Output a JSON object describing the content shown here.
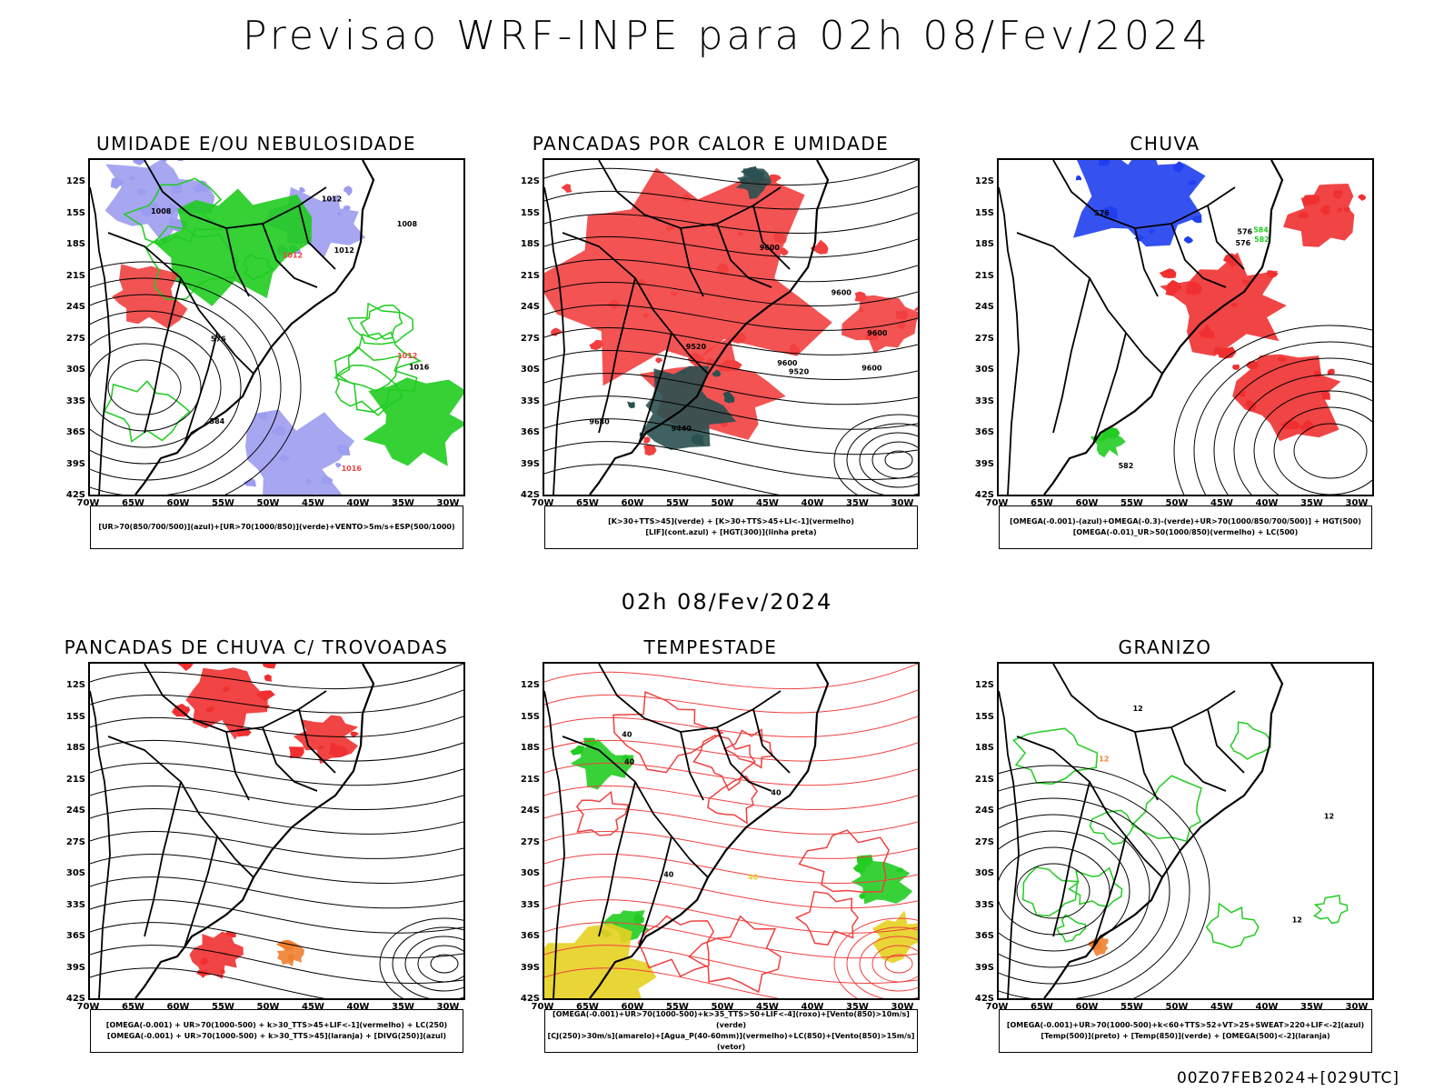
{
  "header": {
    "title": "Previsao WRF-INPE  para 02h 08/Fev/2024",
    "subtitle": "02h 08/Fev/2024",
    "footer": "00Z07FEB2024+[029UTC]"
  },
  "axes": {
    "lat_labels": [
      "12S",
      "15S",
      "18S",
      "21S",
      "24S",
      "27S",
      "30S",
      "33S",
      "36S",
      "39S",
      "42S"
    ],
    "lon_labels": [
      "70W",
      "65W",
      "60W",
      "55W",
      "50W",
      "45W",
      "40W",
      "35W",
      "30W"
    ]
  },
  "panels": [
    {
      "title": "UMIDADE E/OU NEBULOSIDADE",
      "legend": [
        "[UR>70(850/700/500)](azul)+[UR>70(1000/850)](verde)+VENTO>5m/s+ESP(500/1000)"
      ],
      "contour_labels": [
        "1012",
        "1012",
        "1012",
        "1016",
        "1008",
        "1016",
        "576",
        "584",
        "1012",
        "1008"
      ],
      "colors": {
        "primary": "#9c9cf0",
        "secondary": "#1fcc1f",
        "tertiary": "#f04040"
      }
    },
    {
      "title": "PANCADAS POR CALOR E UMIDADE",
      "legend": [
        "[K>30+TTS>45](verde) + [K>30+TTS>45+LI<-1](vermelho)",
        "[LIF](cont.azul) + [HGT(300)](linha preta)"
      ],
      "contour_labels": [
        "9680",
        "9600",
        "9600",
        "9600",
        "9600",
        "9440",
        "9520",
        "9520",
        "9600"
      ],
      "colors": {
        "primary": "#f24040",
        "secondary": "#2a5050",
        "tertiary": "#3050f0"
      }
    },
    {
      "title": "CHUVA",
      "legend": [
        "[OMEGA(-0.001)-(azul)+OMEGA(-0.3)-(verde)+UR>70(1000/850/700/500)] + HGT(500)",
        "[OMEGA(-0.01)_UR>50(1000/850)(vermelho) + LC(500)"
      ],
      "contour_labels": [
        "582",
        "576",
        "582",
        "576",
        "576",
        "584"
      ],
      "colors": {
        "primary": "#f03030",
        "secondary": "#1f3ff0",
        "tertiary": "#22cc22"
      }
    },
    {
      "title": "PANCADAS DE CHUVA C/ TROVOADAS",
      "legend": [
        "[OMEGA(-0.001) + UR>70(1000-500) + k>30_TTS>45+LIF<-1](vermelho) + LC(250)",
        "[OMEGA(-0.001) + UR>70(1000-500) + k>30_TTS>45](laranja) + [DIVG(250)](azul)"
      ],
      "contour_labels": [],
      "colors": {
        "primary": "#f03030",
        "secondary": "#2050f0",
        "tertiary": "#f08030"
      }
    },
    {
      "title": "TEMPESTADE",
      "legend": [
        "[OMEGA(-0.001)+UR>70(1000-500)+k>35_TTS>50+LIF<-4](roxo)+[Vento(850)>10m/s](verde)",
        "[CJ(250)>30m/s](amarelo)+[Agua_P(40-60mm)](vermelho)+LC(850)+[Vento(850)>15m/s](vetor)"
      ],
      "contour_labels": [
        "40",
        "40",
        "40",
        "40",
        "40"
      ],
      "colors": {
        "primary": "#f04040",
        "secondary": "#22cc22",
        "tertiary": "#e6d020"
      }
    },
    {
      "title": "GRANIZO",
      "legend": [
        "[OMEGA(-0.001)+UR>70(1000-500)+k<60+TTS>52+VT>25+SWEAT>220+LIF<-2](azul)",
        "[Temp(500)](preto) + [Temp(850)](verde) + [OMEGA(500)<-2](laranja)"
      ],
      "contour_labels": [
        "12",
        "12",
        "12",
        "12"
      ],
      "colors": {
        "primary": "#22cc22",
        "secondary": "#2050f0",
        "tertiary": "#f08030"
      }
    }
  ]
}
